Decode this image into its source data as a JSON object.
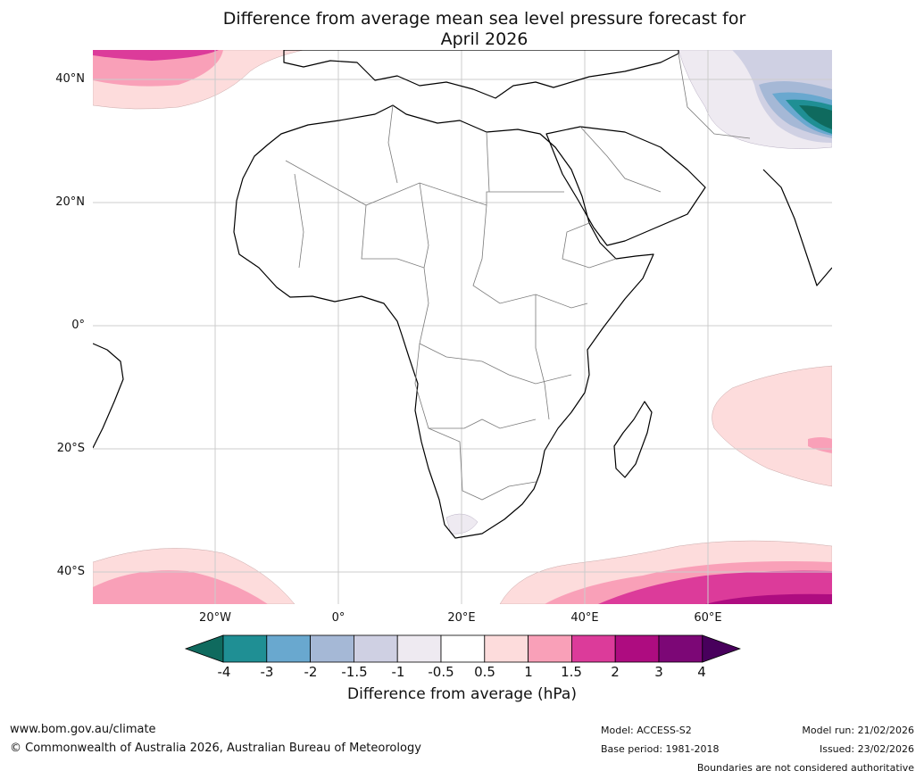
{
  "title": {
    "line1": "Difference from average mean sea level pressure forecast for",
    "line2": "April 2026"
  },
  "axes": {
    "lat_labels": [
      "40°N",
      "20°N",
      "0°",
      "20°S",
      "40°S"
    ],
    "lon_labels": [
      "20°W",
      "0°",
      "20°E",
      "40°E",
      "60°E"
    ]
  },
  "colorbar": {
    "title": "Difference from average (hPa)",
    "ticks": [
      "-4",
      "-3",
      "-2",
      "-1.5",
      "-1",
      "-0.5",
      "0.5",
      "1",
      "1.5",
      "2",
      "3",
      "4"
    ],
    "colors": [
      "#0f6a5e",
      "#1f8f94",
      "#69a8cf",
      "#a5b8d6",
      "#cfd0e3",
      "#eeeaf1",
      "#ffffff",
      "#fddcdc",
      "#f9a0b8",
      "#dc3b9a",
      "#ae0c80",
      "#7c0776",
      "#48005c"
    ]
  },
  "footer": {
    "website": "www.bom.gov.au/climate",
    "copyright": "© Commonwealth of Australia 2026, Australian Bureau of Meteorology",
    "model": "Model: ACCESS-S2",
    "base_period": "Base period: 1981-2018",
    "model_run": "Model run: 21/02/2026",
    "issued": "Issued: 23/02/2026",
    "disclaimer": "Boundaries are not considered authoritative"
  }
}
